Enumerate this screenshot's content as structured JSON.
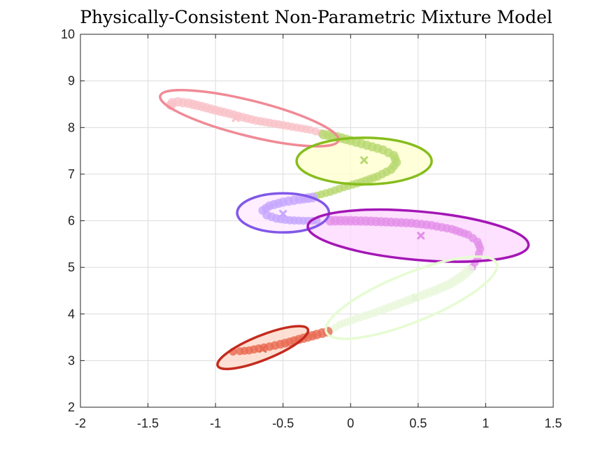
{
  "chart_data": {
    "type": "scatter",
    "title": "Physically-Consistent Non-Parametric Mixture Model",
    "xlabel": "",
    "ylabel": "",
    "xlim": [
      -2,
      1.5
    ],
    "ylim": [
      2,
      10
    ],
    "xticks": [
      "-2",
      "-1.5",
      "-1",
      "-0.5",
      "0",
      "0.5",
      "1",
      "1.5"
    ],
    "yticks": [
      "2",
      "3",
      "4",
      "5",
      "6",
      "7",
      "8",
      "9",
      "10"
    ],
    "grid": true,
    "legend": "none",
    "components": [
      {
        "color": "#f08a96",
        "fill": "none",
        "mean": [
          -0.85,
          8.2
        ],
        "ellipse": {
          "cx": -0.75,
          "cy": 8.2,
          "rx": 0.68,
          "ry": 0.38,
          "angle_deg": -14
        },
        "trajectory_color": "#f9c2c8",
        "trajectory": [
          [
            -1.33,
            8.48
          ],
          [
            -1.32,
            8.53
          ],
          [
            -1.28,
            8.55
          ],
          [
            -1.2,
            8.52
          ],
          [
            -1.1,
            8.45
          ],
          [
            -1.0,
            8.37
          ],
          [
            -0.9,
            8.3
          ],
          [
            -0.8,
            8.22
          ],
          [
            -0.7,
            8.15
          ],
          [
            -0.6,
            8.1
          ],
          [
            -0.5,
            8.05
          ],
          [
            -0.4,
            8.0
          ],
          [
            -0.3,
            7.95
          ],
          [
            -0.22,
            7.88
          ]
        ]
      },
      {
        "color": "#86bd1c",
        "fill": "#ffffcc",
        "mean": [
          0.1,
          7.3
        ],
        "ellipse": {
          "cx": 0.1,
          "cy": 7.28,
          "rx": 0.5,
          "ry": 0.5,
          "angle_deg": 0
        },
        "trajectory_color": "#b8d870",
        "trajectory": [
          [
            -0.2,
            7.85
          ],
          [
            -0.1,
            7.8
          ],
          [
            0.0,
            7.72
          ],
          [
            0.12,
            7.62
          ],
          [
            0.24,
            7.52
          ],
          [
            0.32,
            7.4
          ],
          [
            0.34,
            7.25
          ],
          [
            0.3,
            7.1
          ],
          [
            0.2,
            6.95
          ],
          [
            0.08,
            6.83
          ],
          [
            -0.05,
            6.72
          ],
          [
            -0.15,
            6.62
          ],
          [
            -0.25,
            6.54
          ]
        ]
      },
      {
        "color": "#8058e8",
        "fill": "#fde8ff",
        "mean": [
          -0.5,
          6.15
        ],
        "ellipse": {
          "cx": -0.5,
          "cy": 6.17,
          "rx": 0.34,
          "ry": 0.42,
          "angle_deg": 0
        },
        "trajectory_color": "#c7a6ff",
        "trajectory": [
          [
            -0.28,
            6.5
          ],
          [
            -0.38,
            6.46
          ],
          [
            -0.5,
            6.4
          ],
          [
            -0.6,
            6.32
          ],
          [
            -0.65,
            6.22
          ],
          [
            -0.62,
            6.12
          ],
          [
            -0.55,
            6.05
          ],
          [
            -0.45,
            6.01
          ],
          [
            -0.35,
            6.0
          ],
          [
            -0.25,
            6.0
          ]
        ]
      },
      {
        "color": "#a316b5",
        "fill": "#fdd6ff",
        "mean": [
          0.52,
          5.68
        ],
        "ellipse": {
          "cx": 0.5,
          "cy": 5.68,
          "rx": 0.82,
          "ry": 0.52,
          "angle_deg": -5
        },
        "trajectory_color": "#e28ee8",
        "trajectory": [
          [
            -0.15,
            6.0
          ],
          [
            0.0,
            6.0
          ],
          [
            0.15,
            5.99
          ],
          [
            0.3,
            5.97
          ],
          [
            0.45,
            5.95
          ],
          [
            0.6,
            5.9
          ],
          [
            0.75,
            5.82
          ],
          [
            0.87,
            5.7
          ],
          [
            0.94,
            5.55
          ],
          [
            0.96,
            5.4
          ],
          [
            0.94,
            5.2
          ],
          [
            0.9,
            5.0
          ]
        ]
      },
      {
        "color": "#e6fcd2",
        "fill": "none",
        "mean": [
          0.48,
          4.35
        ],
        "ellipse": {
          "cx": 0.45,
          "cy": 4.35,
          "rx": 0.68,
          "ry": 0.52,
          "angle_deg": 22
        },
        "trajectory_color": "#eaf7dc",
        "trajectory": [
          [
            0.88,
            4.95
          ],
          [
            0.82,
            4.8
          ],
          [
            0.74,
            4.65
          ],
          [
            0.62,
            4.5
          ],
          [
            0.48,
            4.35
          ],
          [
            0.32,
            4.18
          ],
          [
            0.18,
            4.03
          ],
          [
            0.04,
            3.9
          ],
          [
            -0.08,
            3.77
          ],
          [
            -0.15,
            3.65
          ]
        ]
      },
      {
        "color": "#c42b1e",
        "fill": "#fcd5c4",
        "mean": [
          -0.65,
          3.25
        ],
        "ellipse": {
          "cx": -0.65,
          "cy": 3.28,
          "rx": 0.36,
          "ry": 0.26,
          "angle_deg": 22
        },
        "trajectory_color": "#e86a52",
        "trajectory": [
          [
            -0.17,
            3.62
          ],
          [
            -0.25,
            3.56
          ],
          [
            -0.35,
            3.48
          ],
          [
            -0.45,
            3.4
          ],
          [
            -0.52,
            3.35
          ],
          [
            -0.6,
            3.3
          ],
          [
            -0.68,
            3.26
          ],
          [
            -0.75,
            3.22
          ],
          [
            -0.82,
            3.2
          ],
          [
            -0.87,
            3.19
          ]
        ]
      }
    ]
  }
}
